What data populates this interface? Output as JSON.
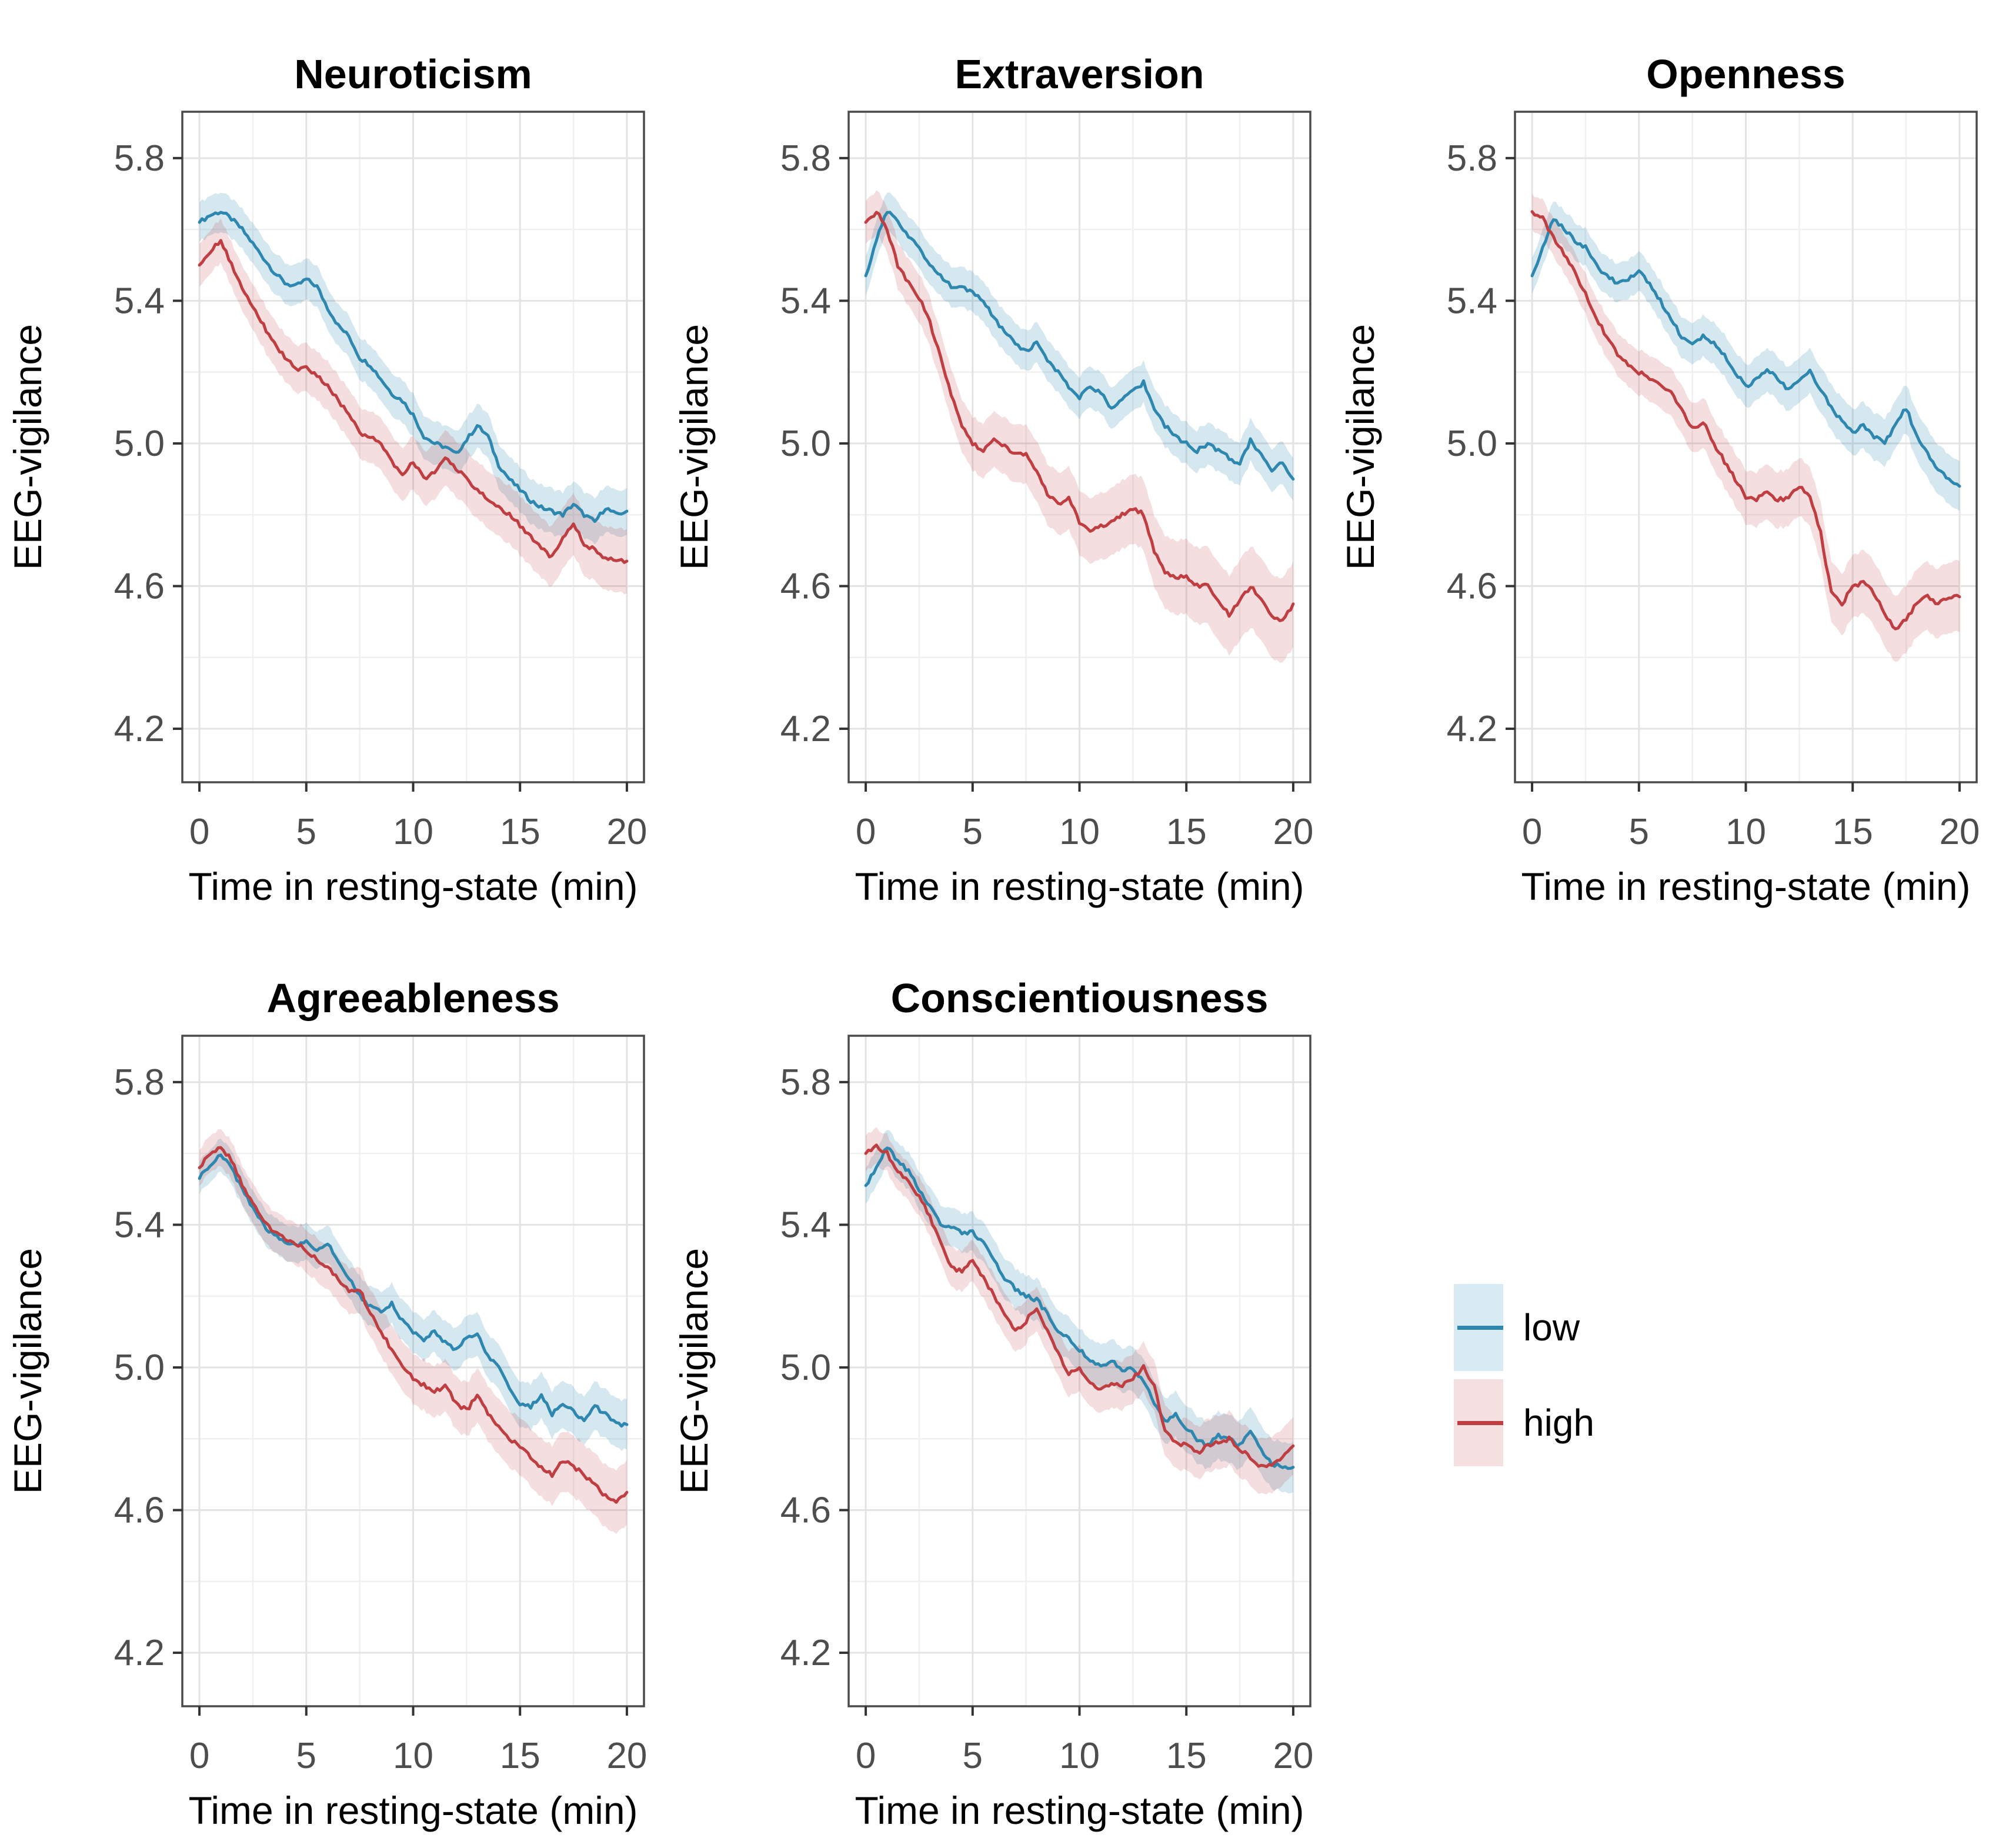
{
  "axes": {
    "x_label": "Time in resting-state (min)",
    "y_label": "EEG-vigilance",
    "x_ticks": [
      0,
      5,
      10,
      15,
      20
    ],
    "y_ticks": [
      4.2,
      4.6,
      5.0,
      5.4,
      5.8
    ],
    "x_minor": [
      2.5,
      7.5,
      12.5,
      17.5
    ],
    "y_minor": [
      4.4,
      4.8,
      5.2,
      5.6
    ],
    "x_range": [
      -0.8,
      20.8
    ],
    "y_range": [
      4.05,
      5.93
    ]
  },
  "style": {
    "border_color": "#4a4a4a",
    "grid_major_color": "#e3e3e3",
    "grid_minor_color": "#f0f0f0",
    "tick_color": "#333333",
    "tick_label_color": "#4d4d4d",
    "title_color": "#000000"
  },
  "legend": {
    "items": [
      {
        "label": "low",
        "line_color": "#2d87ae",
        "band_color": "#d8eaf2",
        "band_opacity": 0.2
      },
      {
        "label": "high",
        "line_color": "#bf3e42",
        "band_color": "#f5e0e1",
        "band_opacity": 0.17
      }
    ]
  },
  "chart_data": [
    {
      "type": "line",
      "title": "Neuroticism",
      "x_start": 0,
      "x_step": 0.5,
      "series": [
        {
          "name": "low",
          "band_start": 0.055,
          "band_end": 0.065,
          "values": [
            5.62,
            5.64,
            5.65,
            5.63,
            5.6,
            5.56,
            5.52,
            5.48,
            5.45,
            5.44,
            5.46,
            5.44,
            5.38,
            5.33,
            5.3,
            5.24,
            5.22,
            5.18,
            5.14,
            5.12,
            5.08,
            5.02,
            5.0,
            4.99,
            4.97,
            5.01,
            5.05,
            5.02,
            4.94,
            4.9,
            4.87,
            4.84,
            4.82,
            4.81,
            4.8,
            4.83,
            4.8,
            4.78,
            4.82,
            4.8,
            4.81
          ]
        },
        {
          "name": "high",
          "band_start": 0.06,
          "band_end": 0.09,
          "values": [
            5.5,
            5.54,
            5.57,
            5.5,
            5.44,
            5.38,
            5.33,
            5.28,
            5.24,
            5.21,
            5.21,
            5.19,
            5.16,
            5.12,
            5.08,
            5.03,
            5.02,
            5.0,
            4.95,
            4.91,
            4.95,
            4.9,
            4.92,
            4.96,
            4.93,
            4.9,
            4.87,
            4.84,
            4.82,
            4.8,
            4.77,
            4.74,
            4.71,
            4.68,
            4.74,
            4.77,
            4.72,
            4.7,
            4.68,
            4.67,
            4.67
          ]
        }
      ]
    },
    {
      "type": "line",
      "title": "Extraversion",
      "x_start": 0,
      "x_step": 0.5,
      "series": [
        {
          "name": "low",
          "band_start": 0.055,
          "band_end": 0.06,
          "values": [
            5.47,
            5.57,
            5.65,
            5.62,
            5.58,
            5.55,
            5.5,
            5.47,
            5.44,
            5.44,
            5.42,
            5.4,
            5.35,
            5.31,
            5.28,
            5.26,
            5.28,
            5.23,
            5.2,
            5.16,
            5.13,
            5.16,
            5.14,
            5.1,
            5.12,
            5.15,
            5.17,
            5.1,
            5.05,
            5.02,
            5.0,
            4.98,
            5.0,
            4.98,
            4.96,
            4.94,
            5.01,
            4.97,
            4.92,
            4.95,
            4.9
          ]
        },
        {
          "name": "high",
          "band_start": 0.06,
          "band_end": 0.12,
          "values": [
            5.62,
            5.65,
            5.6,
            5.5,
            5.45,
            5.41,
            5.34,
            5.24,
            5.14,
            5.05,
            5.0,
            4.98,
            5.01,
            4.99,
            4.97,
            4.97,
            4.92,
            4.86,
            4.83,
            4.85,
            4.78,
            4.75,
            4.77,
            4.78,
            4.8,
            4.82,
            4.8,
            4.7,
            4.64,
            4.62,
            4.63,
            4.6,
            4.6,
            4.56,
            4.52,
            4.56,
            4.6,
            4.56,
            4.51,
            4.5,
            4.55
          ]
        }
      ]
    },
    {
      "type": "line",
      "title": "Openness",
      "x_start": 0,
      "x_step": 0.5,
      "series": [
        {
          "name": "low",
          "band_start": 0.05,
          "band_end": 0.07,
          "values": [
            5.47,
            5.55,
            5.63,
            5.6,
            5.57,
            5.55,
            5.5,
            5.47,
            5.45,
            5.46,
            5.48,
            5.45,
            5.4,
            5.35,
            5.3,
            5.28,
            5.3,
            5.28,
            5.25,
            5.2,
            5.16,
            5.18,
            5.21,
            5.18,
            5.15,
            5.18,
            5.2,
            5.15,
            5.1,
            5.06,
            5.03,
            5.05,
            5.02,
            5.0,
            5.05,
            5.1,
            5.02,
            4.97,
            4.93,
            4.9,
            4.88
          ]
        },
        {
          "name": "high",
          "band_start": 0.05,
          "band_end": 0.1,
          "values": [
            5.65,
            5.63,
            5.58,
            5.53,
            5.48,
            5.42,
            5.35,
            5.3,
            5.25,
            5.22,
            5.2,
            5.18,
            5.16,
            5.14,
            5.1,
            5.04,
            5.06,
            5.0,
            4.95,
            4.9,
            4.85,
            4.84,
            4.87,
            4.84,
            4.85,
            4.88,
            4.85,
            4.75,
            4.58,
            4.55,
            4.6,
            4.61,
            4.58,
            4.52,
            4.48,
            4.51,
            4.55,
            4.57,
            4.55,
            4.57,
            4.57
          ]
        }
      ]
    },
    {
      "type": "line",
      "title": "Agreeableness",
      "x_start": 0,
      "x_step": 0.5,
      "series": [
        {
          "name": "low",
          "band_start": 0.045,
          "band_end": 0.07,
          "values": [
            5.53,
            5.57,
            5.6,
            5.56,
            5.5,
            5.45,
            5.4,
            5.37,
            5.35,
            5.34,
            5.35,
            5.33,
            5.35,
            5.3,
            5.25,
            5.2,
            5.17,
            5.16,
            5.18,
            5.13,
            5.1,
            5.08,
            5.1,
            5.07,
            5.05,
            5.08,
            5.1,
            5.03,
            5.0,
            4.94,
            4.9,
            4.89,
            4.92,
            4.87,
            4.9,
            4.88,
            4.85,
            4.89,
            4.87,
            4.84,
            4.84
          ]
        },
        {
          "name": "high",
          "band_start": 0.05,
          "band_end": 0.09,
          "values": [
            5.56,
            5.6,
            5.62,
            5.58,
            5.51,
            5.46,
            5.41,
            5.38,
            5.36,
            5.35,
            5.33,
            5.3,
            5.28,
            5.25,
            5.21,
            5.22,
            5.15,
            5.1,
            5.05,
            5.0,
            4.97,
            4.95,
            4.93,
            4.95,
            4.9,
            4.88,
            4.92,
            4.87,
            4.83,
            4.8,
            4.78,
            4.75,
            4.72,
            4.7,
            4.74,
            4.72,
            4.7,
            4.67,
            4.64,
            4.62,
            4.65
          ]
        }
      ]
    },
    {
      "type": "line",
      "title": "Conscientiousness",
      "x_start": 0,
      "x_step": 0.5,
      "series": [
        {
          "name": "low",
          "band_start": 0.05,
          "band_end": 0.07,
          "values": [
            5.51,
            5.56,
            5.62,
            5.58,
            5.55,
            5.5,
            5.45,
            5.4,
            5.39,
            5.38,
            5.38,
            5.35,
            5.3,
            5.25,
            5.22,
            5.2,
            5.19,
            5.15,
            5.1,
            5.08,
            5.05,
            5.02,
            5.0,
            5.02,
            4.99,
            5.0,
            4.96,
            4.9,
            4.85,
            4.87,
            4.83,
            4.8,
            4.78,
            4.81,
            4.8,
            4.78,
            4.82,
            4.77,
            4.73,
            4.72,
            4.72
          ]
        },
        {
          "name": "high",
          "band_start": 0.05,
          "band_end": 0.08,
          "values": [
            5.6,
            5.62,
            5.6,
            5.55,
            5.52,
            5.48,
            5.42,
            5.35,
            5.28,
            5.27,
            5.3,
            5.25,
            5.2,
            5.15,
            5.1,
            5.13,
            5.17,
            5.1,
            5.04,
            4.98,
            5.0,
            4.96,
            4.94,
            4.95,
            4.95,
            4.97,
            5.0,
            4.95,
            4.82,
            4.79,
            4.78,
            4.76,
            4.78,
            4.79,
            4.8,
            4.77,
            4.75,
            4.72,
            4.73,
            4.75,
            4.78
          ]
        }
      ]
    }
  ]
}
